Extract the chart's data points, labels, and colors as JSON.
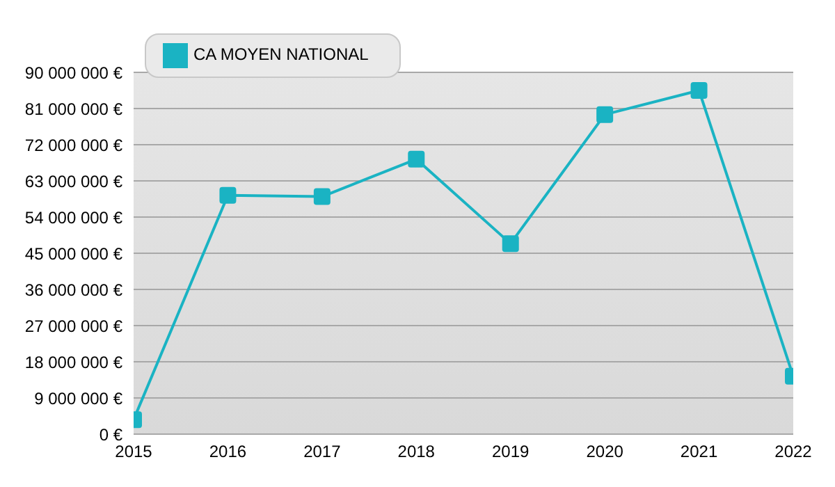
{
  "chart_data": {
    "type": "line",
    "x": [
      2015,
      2016,
      2017,
      2018,
      2019,
      2020,
      2021,
      2022
    ],
    "series": [
      {
        "name": "CA MOYEN NATIONAL",
        "color": "#1ab3c3",
        "values": [
          3600000,
          59400000,
          59100000,
          68400000,
          47400000,
          79500000,
          85500000,
          14400000
        ]
      }
    ],
    "xlim": [
      2015,
      2022
    ],
    "xticks": [
      2015,
      2016,
      2017,
      2018,
      2019,
      2020,
      2021,
      2022
    ],
    "ylim": [
      0,
      90000000
    ],
    "yticks": [
      {
        "value": 0,
        "label": "0 €"
      },
      {
        "value": 9000000,
        "label": "9 000 000 €"
      },
      {
        "value": 18000000,
        "label": "18 000 000 €"
      },
      {
        "value": 27000000,
        "label": "27 000 000 €"
      },
      {
        "value": 36000000,
        "label": "36 000 000 €"
      },
      {
        "value": 45000000,
        "label": "45 000 000 €"
      },
      {
        "value": 54000000,
        "label": "54 000 000 €"
      },
      {
        "value": 63000000,
        "label": "63 000 000 €"
      },
      {
        "value": 72000000,
        "label": "72 000 000 €"
      },
      {
        "value": 81000000,
        "label": "81 000 000 €"
      },
      {
        "value": 90000000,
        "label": "90 000 000 €"
      }
    ],
    "grid": "y",
    "legend": "top left",
    "marker": "square",
    "line_style": "solid"
  }
}
